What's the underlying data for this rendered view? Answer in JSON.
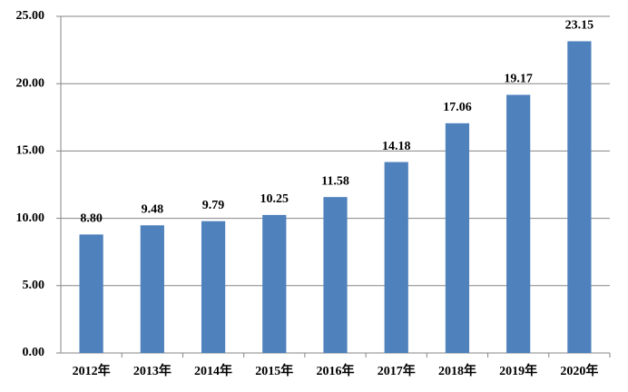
{
  "chart_data": {
    "type": "bar",
    "categories": [
      "2012年",
      "2013年",
      "2014年",
      "2015年",
      "2016年",
      "2017年",
      "2018年",
      "2019年",
      "2020年"
    ],
    "values": [
      8.8,
      9.48,
      9.79,
      10.25,
      11.58,
      14.18,
      17.06,
      19.17,
      23.15
    ],
    "value_labels": [
      "8.80",
      "9.48",
      "9.79",
      "10.25",
      "11.58",
      "14.18",
      "17.06",
      "19.17",
      "23.15"
    ],
    "color": "#4f81bd",
    "ylim": [
      0,
      25
    ],
    "yticks": [
      {
        "value": 0,
        "label": "0.00"
      },
      {
        "value": 5,
        "label": "5.00"
      },
      {
        "value": 10,
        "label": "10.00"
      },
      {
        "value": 15,
        "label": "15.00"
      },
      {
        "value": 20,
        "label": "20.00"
      },
      {
        "value": 25,
        "label": "25.00"
      }
    ],
    "grid": true
  }
}
